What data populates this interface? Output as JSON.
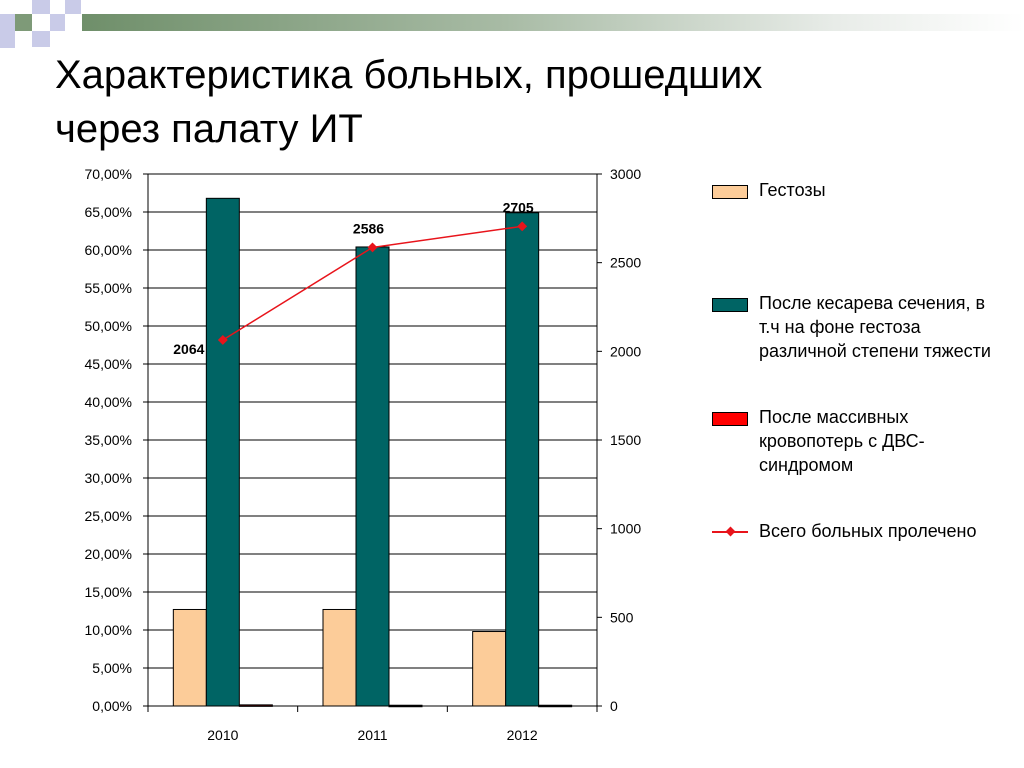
{
  "title_lines": [
    "Характеристика больных, прошедших",
    "через палату ИТ"
  ],
  "chart_data": {
    "type": "bar",
    "categories": [
      "2010",
      "2011",
      "2012"
    ],
    "series": [
      {
        "name": "Гестозы",
        "axis": "left",
        "color": "#fccc99",
        "values": [
          12.7,
          12.7,
          9.8
        ]
      },
      {
        "name": "После кесарева сечения, в т.ч на фоне гестоза различной степени тяжести",
        "axis": "left",
        "color": "#006464",
        "values": [
          66.8,
          60.4,
          64.9
        ]
      },
      {
        "name": "После массивных кровопотерь с ДВС-синдромом",
        "axis": "left",
        "color": "#ff0000",
        "values": [
          0.15,
          0.1,
          0.1
        ]
      },
      {
        "name": "Всего больных пролечено",
        "axis": "right",
        "type": "line",
        "color": "#e8141b",
        "values": [
          2064,
          2586,
          2705
        ],
        "labels": [
          "2064",
          "2586",
          "2705"
        ]
      }
    ],
    "left_axis": {
      "min": 0,
      "max": 70,
      "step": 5,
      "format": "percent_comma",
      "ticks": [
        "0,00%",
        "5,00%",
        "10,00%",
        "15,00%",
        "20,00%",
        "25,00%",
        "30,00%",
        "35,00%",
        "40,00%",
        "45,00%",
        "50,00%",
        "55,00%",
        "60,00%",
        "65,00%",
        "70,00%"
      ]
    },
    "right_axis": {
      "min": 0,
      "max": 3000,
      "step": 500,
      "ticks": [
        "0",
        "500",
        "1000",
        "1500",
        "2000",
        "2500",
        "3000"
      ]
    },
    "grid": true,
    "legend_position": "right"
  },
  "legend": [
    {
      "label": "Гестозы",
      "kind": "box",
      "color": "#fccc99"
    },
    {
      "label": "После кесарева сечения, в т.ч на фоне гестоза различной степени тяжести",
      "kind": "box",
      "color": "#006464"
    },
    {
      "label": "После массивных кровопотерь с ДВС-синдромом",
      "kind": "box",
      "color": "#ff0000"
    },
    {
      "label": "Всего больных пролечено",
      "kind": "line",
      "color": "#e8141b"
    }
  ]
}
